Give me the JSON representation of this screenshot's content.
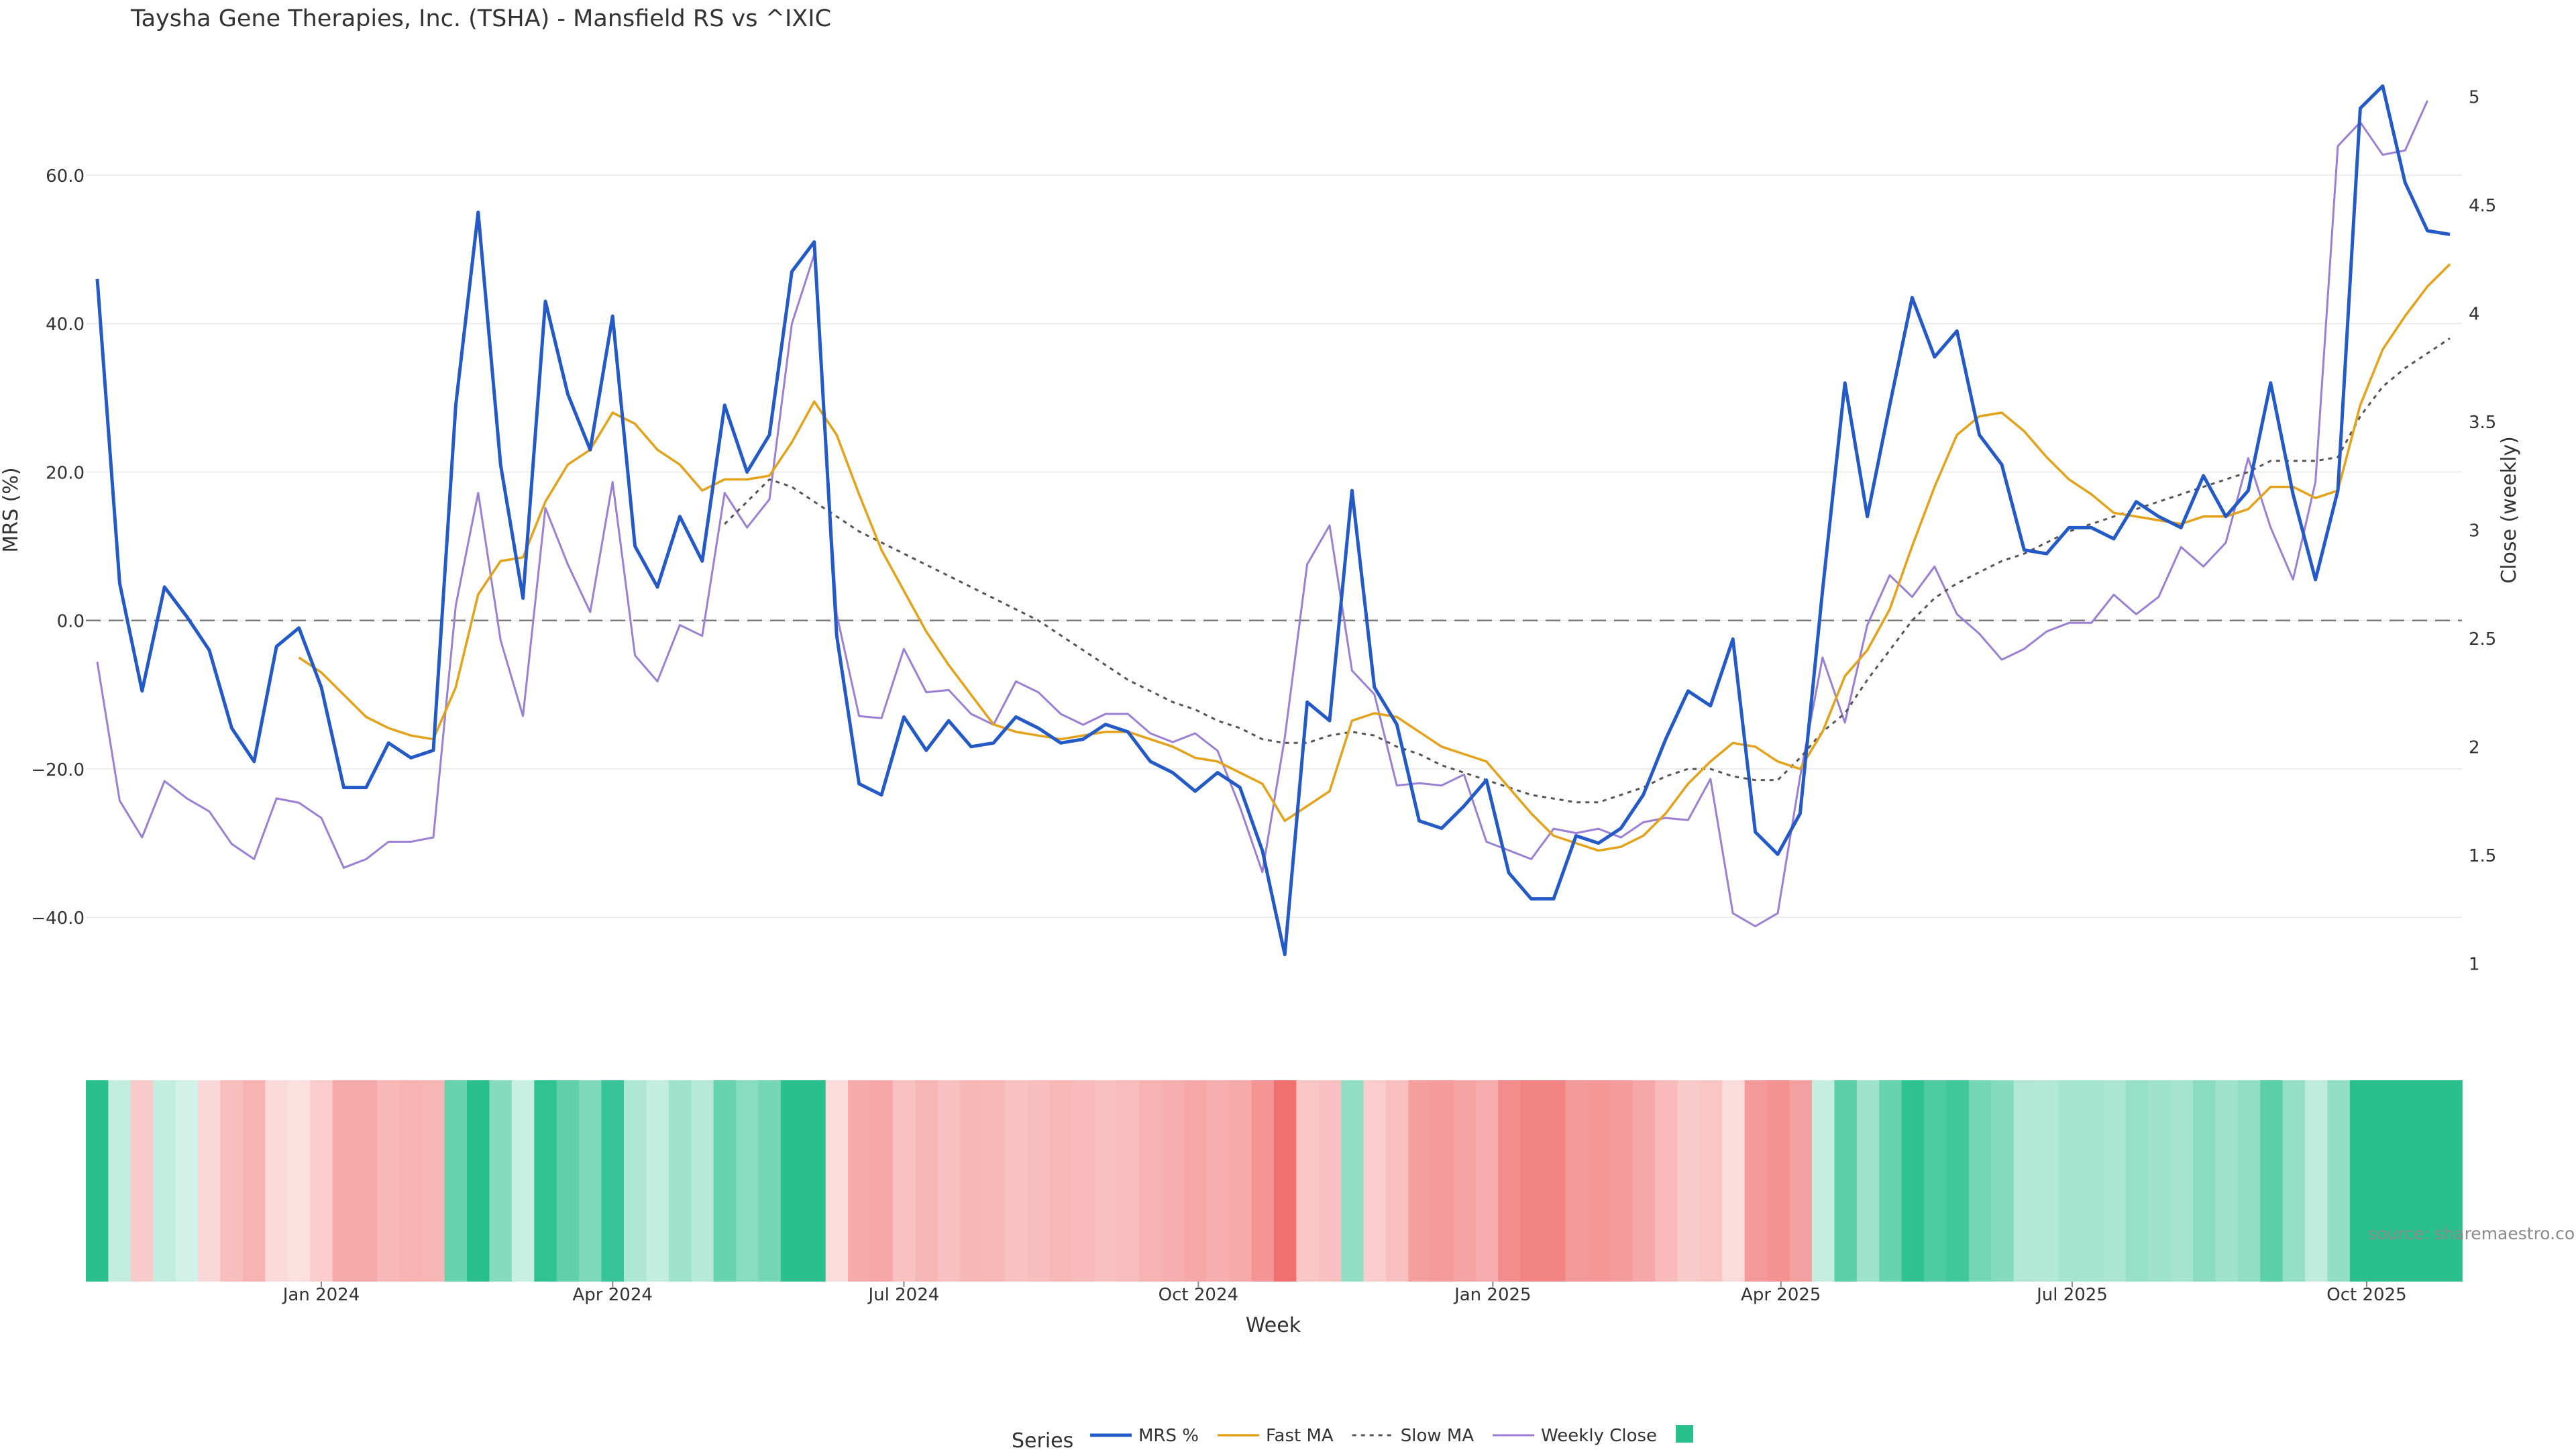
{
  "chart_data": {
    "type": "line",
    "title": "Taysha Gene Therapies, Inc. (TSHA) - Mansfield RS vs ^IXIC",
    "xlabel": "Week",
    "ylabel_left": "MRS (%)",
    "ylabel_right": "Close (weekly)",
    "source": "source: sharemaestro.com",
    "legend_title": "Series",
    "legend_position": "bottom",
    "x_start": "2023-10-23",
    "x_interval": "weekly",
    "x_tick_labels": [
      "Jan 2024",
      "Apr 2024",
      "Jul 2024",
      "Oct 2024",
      "Jan 2025",
      "Apr 2025",
      "Jul 2025",
      "Oct 2025"
    ],
    "x_tick_dates": [
      "2024-01-01",
      "2024-04-01",
      "2024-07-01",
      "2024-10-01",
      "2025-01-01",
      "2025-04-01",
      "2025-07-01",
      "2025-10-01"
    ],
    "y_left": {
      "ticks": [
        -40,
        -20,
        0,
        20,
        40,
        60
      ],
      "tick_labels": [
        "−40.0",
        "−20.0",
        "0.0",
        "20.0",
        "40.0",
        "60.0"
      ],
      "range": [
        -52,
        75
      ]
    },
    "y_right": {
      "ticks": [
        1,
        1.5,
        2,
        2.5,
        3,
        3.5,
        4,
        4.5,
        5
      ],
      "tick_labels": [
        "1",
        "1.5",
        "2",
        "2.5",
        "3",
        "3.5",
        "4",
        "4.5",
        "5"
      ],
      "range": [
        0.8,
        5.15
      ]
    },
    "grid": true,
    "zero_line": true,
    "colors": {
      "mrs": "#2459c8",
      "fast": "#e3a21a",
      "slow": "#555555",
      "close": "#9b7fd4",
      "heat_pos": "#29c08e",
      "heat_neg": "#f07070"
    },
    "series": [
      {
        "name": "MRS %",
        "axis": "left",
        "values": [
          46,
          5,
          -9.5,
          4.5,
          0.5,
          -4,
          -14.5,
          -19,
          -3.5,
          -1,
          -9,
          -22.5,
          -22.5,
          -16.5,
          -18.5,
          -17.5,
          29,
          55,
          21,
          3,
          43,
          30.5,
          23,
          41,
          10,
          4.5,
          14,
          8,
          29,
          20,
          25,
          47,
          51,
          -2,
          -22,
          -23.5,
          -13,
          -17.5,
          -13.5,
          -17,
          -16.5,
          -13,
          -14.5,
          -16.5,
          -16,
          -14,
          -15,
          -19,
          -20.5,
          -23,
          -20.5,
          -22.5,
          -31,
          -45,
          -11,
          -13.5,
          17.5,
          -9,
          -14,
          -27,
          -28,
          -25,
          -21.5,
          -34,
          -37.5,
          -37.5,
          -29,
          -30,
          -28,
          -23.5,
          -16,
          -9.5,
          -11.5,
          -2.5,
          -28.5,
          -31.5,
          -26,
          4,
          32,
          14,
          29,
          43.5,
          35.5,
          39,
          25,
          21,
          9.5,
          9,
          12.5,
          12.5,
          11,
          16,
          14,
          12.5,
          19.5,
          14,
          17.5,
          32,
          17,
          5.5,
          17.5,
          69,
          72,
          59,
          52.5,
          52
        ]
      },
      {
        "name": "Fast MA",
        "axis": "left",
        "values": [
          null,
          null,
          null,
          null,
          null,
          null,
          null,
          null,
          null,
          -5,
          -7,
          -10,
          -13,
          -14.5,
          -15.5,
          -16,
          -9,
          3.5,
          8,
          8.5,
          16,
          21,
          23,
          28,
          26.5,
          23,
          21,
          17.5,
          19,
          19,
          19.5,
          24,
          29.5,
          25,
          17,
          9.5,
          4,
          -1.5,
          -6,
          -10,
          -14,
          -15,
          -15.5,
          -16,
          -15.5,
          -15,
          -15,
          -16,
          -17,
          -18.5,
          -19,
          -20.5,
          -22,
          -27,
          -25,
          -23,
          -13.5,
          -12.5,
          -13,
          -15,
          -17,
          -18,
          -19,
          -22.5,
          -26,
          -29,
          -30,
          -31,
          -30.5,
          -29,
          -26,
          -22,
          -19,
          -16.5,
          -17,
          -19,
          -20,
          -15,
          -7.5,
          -4,
          1.5,
          10,
          18,
          25,
          27.5,
          28,
          25.5,
          22,
          19,
          17,
          14.5,
          14,
          13.5,
          13,
          14,
          14,
          15,
          18,
          18,
          16.5,
          17.5,
          29,
          36.5,
          41,
          45,
          48
        ]
      },
      {
        "name": "Slow MA",
        "axis": "left",
        "values": [
          null,
          null,
          null,
          null,
          null,
          null,
          null,
          null,
          null,
          null,
          null,
          null,
          null,
          null,
          null,
          null,
          null,
          null,
          null,
          null,
          null,
          null,
          null,
          null,
          null,
          null,
          null,
          null,
          13,
          16,
          19,
          18,
          16,
          14,
          12,
          10.5,
          9,
          7.5,
          6,
          4.5,
          3,
          1.5,
          0,
          -2,
          -4,
          -6,
          -8,
          -9.5,
          -11,
          -12,
          -13.5,
          -14.5,
          -16,
          -16.5,
          -16.5,
          -15.5,
          -15,
          -15.5,
          -17,
          -18,
          -19.5,
          -20.5,
          -21.5,
          -22.5,
          -23.5,
          -24,
          -24.5,
          -24.5,
          -23.5,
          -22.5,
          -21,
          -20,
          -20,
          -21,
          -21.5,
          -21.5,
          -18.5,
          -15,
          -12.5,
          -8,
          -4,
          0,
          3,
          5,
          6.5,
          8,
          9,
          10.5,
          12,
          13,
          14,
          15,
          16,
          17,
          18,
          19,
          20,
          21.5,
          21.5,
          21.5,
          22,
          27.5,
          31.5,
          34,
          36,
          38
        ]
      },
      {
        "name": "Weekly Close",
        "axis": "right",
        "values": [
          2.39,
          1.75,
          1.58,
          1.84,
          1.76,
          1.7,
          1.55,
          1.48,
          1.76,
          1.74,
          1.67,
          1.44,
          1.48,
          1.56,
          1.56,
          1.58,
          2.65,
          3.17,
          2.49,
          2.14,
          3.1,
          2.84,
          2.62,
          3.22,
          2.42,
          2.3,
          2.56,
          2.51,
          3.17,
          3.01,
          3.14,
          3.95,
          4.27,
          2.61,
          2.14,
          2.13,
          2.45,
          2.25,
          2.26,
          2.15,
          2.1,
          2.3,
          2.25,
          2.15,
          2.1,
          2.15,
          2.15,
          2.06,
          2.02,
          2.06,
          1.98,
          1.72,
          1.42,
          2.04,
          2.84,
          3.02,
          2.35,
          2.24,
          1.82,
          1.83,
          1.82,
          1.87,
          1.56,
          1.52,
          1.48,
          1.62,
          1.6,
          1.62,
          1.58,
          1.65,
          1.67,
          1.66,
          1.85,
          1.23,
          1.17,
          1.23,
          1.86,
          2.41,
          2.11,
          2.56,
          2.79,
          2.69,
          2.83,
          2.61,
          2.52,
          2.4,
          2.45,
          2.53,
          2.57,
          2.57,
          2.7,
          2.61,
          2.69,
          2.92,
          2.83,
          2.94,
          3.33,
          3.01,
          2.77,
          3.22,
          4.77,
          4.88,
          4.73,
          4.75,
          4.98
        ]
      }
    ],
    "heatmap_strip": {
      "label": "",
      "color_scale": "MRS %: green for positive, red for negative, lighter near zero"
    }
  }
}
